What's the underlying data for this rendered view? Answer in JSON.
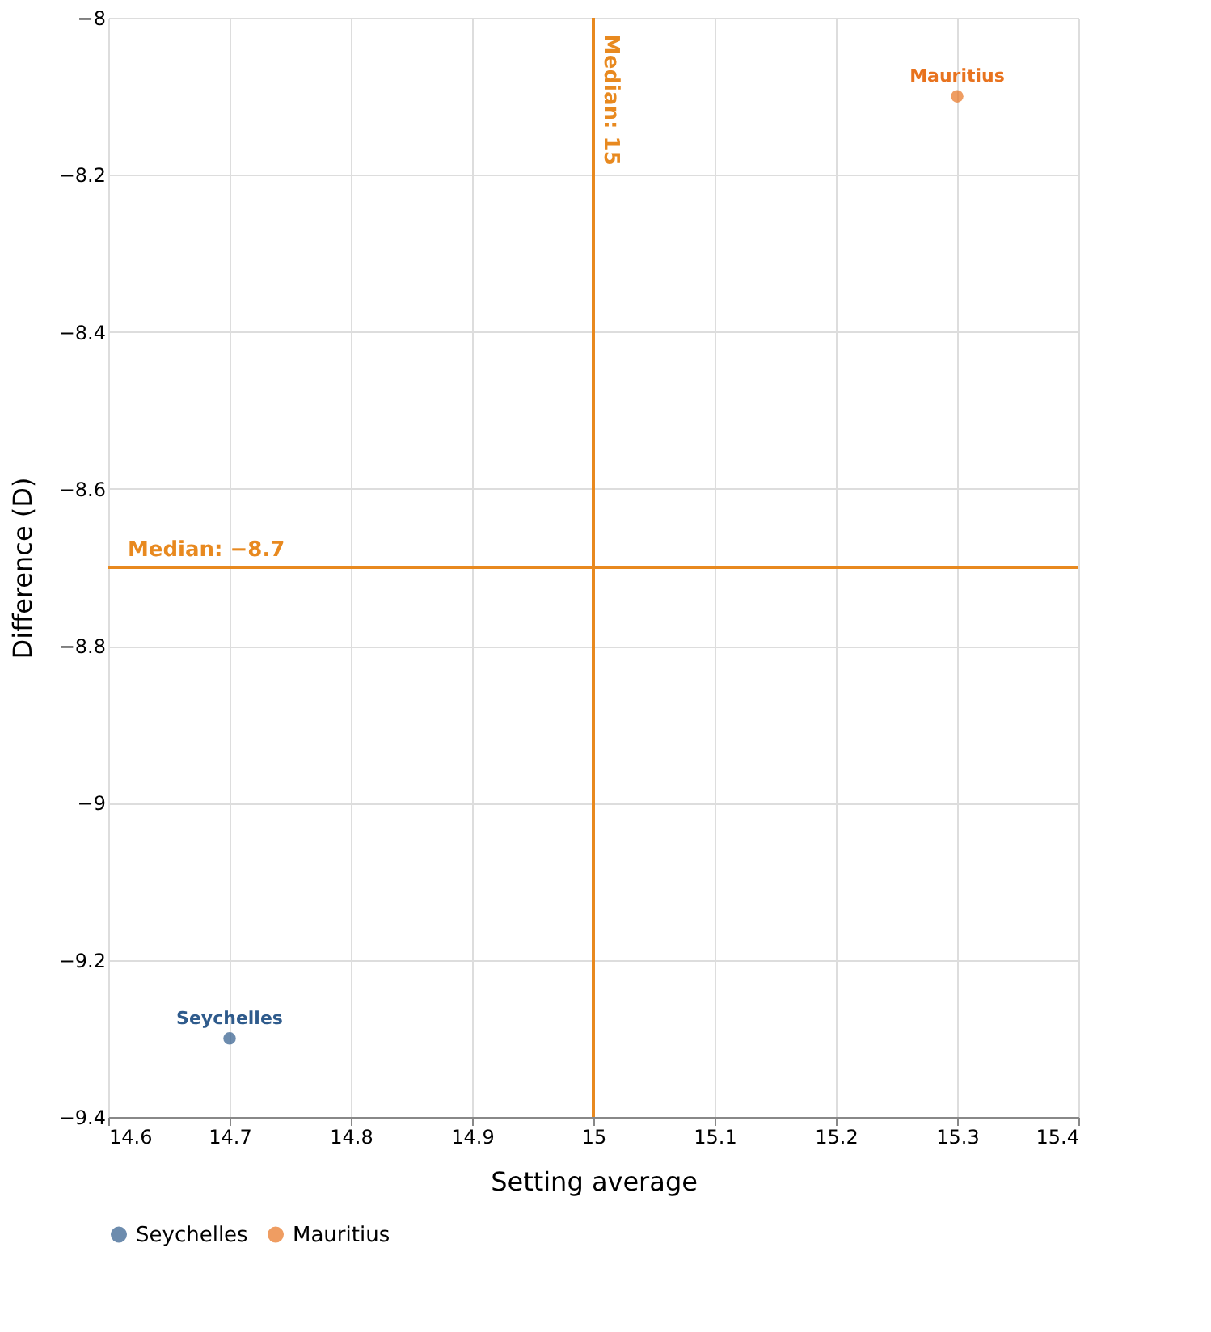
{
  "chart_data": {
    "type": "scatter",
    "xlabel": "Setting average",
    "ylabel": "Difference (D)",
    "series": [
      {
        "name": "Seychelles",
        "color": "#2f5b8c",
        "x": [
          14.7
        ],
        "values": [
          -9.3
        ]
      },
      {
        "name": "Mauritius",
        "color": "#e8731f",
        "x": [
          15.3
        ],
        "values": [
          -8.1
        ]
      }
    ],
    "xlim": [
      14.6,
      15.4
    ],
    "xticks": [
      14.6,
      14.7,
      14.8,
      14.9,
      15,
      15.1,
      15.2,
      15.3,
      15.4
    ],
    "ylim": [
      -9.4,
      -8
    ],
    "yticks": [
      -9.4,
      -9.2,
      -9,
      -8.8,
      -8.6,
      -8.4,
      -8.2,
      -8
    ],
    "ref_lines": [
      {
        "axis": "x",
        "value": 15,
        "label": "Median: 15",
        "color": "#e8891f"
      },
      {
        "axis": "y",
        "value": -8.7,
        "label": "Median: −8.7",
        "color": "#e8891f"
      }
    ],
    "grid": true,
    "legend": "bottom",
    "marker": "circle"
  }
}
